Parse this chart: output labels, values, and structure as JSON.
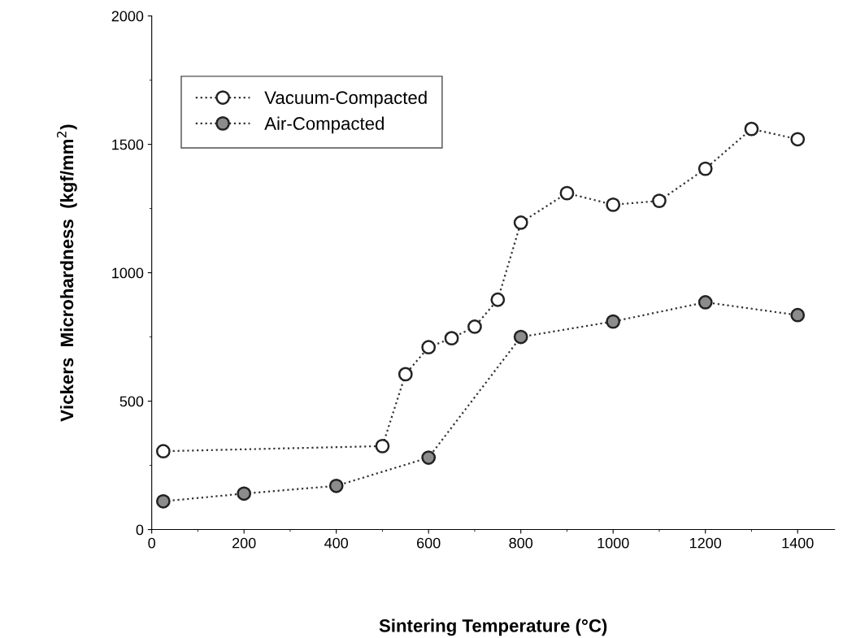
{
  "chart_data": {
    "type": "line",
    "xlabel": "Sintering Temperature (°C)",
    "ylabel": "Vickers  Microhardness  (kgf/mm$^{2}$)",
    "series": [
      {
        "name": "Vacuum-Compacted",
        "color": "#ffffff",
        "x": [
          25,
          500,
          550,
          600,
          650,
          700,
          750,
          800,
          900,
          1000,
          1100,
          1200,
          1300,
          1400
        ],
        "values": [
          305,
          325,
          605,
          710,
          745,
          790,
          895,
          1195,
          1310,
          1265,
          1280,
          1405,
          1560,
          1520
        ]
      },
      {
        "name": "Air-Compacted",
        "color": "#8c8c8c",
        "x": [
          25,
          200,
          400,
          600,
          800,
          1000,
          1200,
          1400
        ],
        "values": [
          110,
          140,
          170,
          280,
          750,
          810,
          885,
          835
        ]
      }
    ],
    "xlim": [
      0,
      1480
    ],
    "xticks": [
      0,
      200,
      400,
      600,
      800,
      1000,
      1200,
      1400
    ],
    "ylim": [
      0,
      2000
    ],
    "yticks": [
      0,
      500,
      1000,
      1500,
      2000
    ],
    "marker": "circle",
    "line_style": "dotted",
    "legend": "top left",
    "grid": false
  }
}
